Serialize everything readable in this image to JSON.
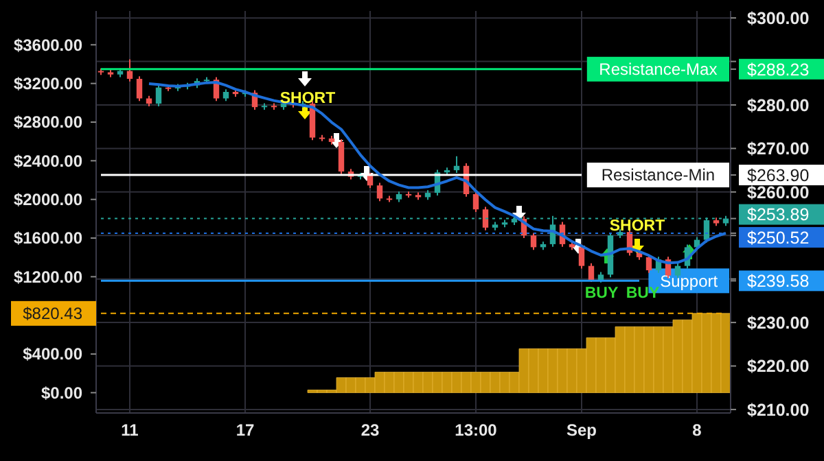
{
  "chart_data": {
    "type": "candlestick",
    "categories": [
      null,
      null,
      null,
      "11",
      null,
      null,
      null,
      null,
      null,
      null,
      null,
      null,
      null,
      null,
      null,
      "17",
      null,
      null,
      null,
      null,
      null,
      null,
      null,
      null,
      null,
      null,
      null,
      null,
      "23",
      null,
      null,
      null,
      null,
      null,
      null,
      null,
      null,
      null,
      null,
      "13:00",
      null,
      null,
      null,
      null,
      null,
      null,
      null,
      null,
      null,
      null,
      "Sep",
      null,
      null,
      null,
      null,
      null,
      null,
      null,
      null,
      null,
      null,
      null,
      "8",
      null,
      null,
      null
    ],
    "ohlc": [
      [
        287.8,
        288.4,
        286.9,
        287.5
      ],
      [
        287.5,
        288.1,
        286.4,
        287
      ],
      [
        287,
        288.4,
        286.4,
        287.8
      ],
      [
        287.8,
        290.5,
        285.4,
        286
      ],
      [
        286,
        286.6,
        280.9,
        281.5
      ],
      [
        281.5,
        282.1,
        279.7,
        280.3
      ],
      [
        280.3,
        284.6,
        279.7,
        284
      ],
      [
        284,
        284.6,
        283.2,
        283.8
      ],
      [
        283.8,
        284.8,
        283.2,
        284.2
      ],
      [
        284.2,
        285.1,
        283.6,
        284.5
      ],
      [
        284.5,
        286.1,
        283.9,
        285.5
      ],
      [
        285.5,
        286.4,
        284.9,
        285.8
      ],
      [
        285.8,
        286.4,
        280.9,
        281.5
      ],
      [
        281.5,
        283.6,
        280.9,
        283
      ],
      [
        283,
        283.6,
        281.9,
        282.5
      ],
      [
        282.5,
        283.4,
        281.9,
        282.8
      ],
      [
        282.8,
        283.4,
        278.9,
        279.5
      ],
      [
        279.5,
        280.4,
        278.9,
        279.8
      ],
      [
        279.8,
        280.4,
        278.9,
        279.5
      ],
      [
        279.5,
        280.9,
        278.9,
        280.3
      ],
      [
        280.3,
        280.9,
        279.4,
        280
      ],
      [
        280,
        280.9,
        279.4,
        280.3
      ],
      [
        280.3,
        280.9,
        271.9,
        272.5
      ],
      [
        272.5,
        273.1,
        271.7,
        272.3
      ],
      [
        272.3,
        272.9,
        270.9,
        271.5
      ],
      [
        271.5,
        272.1,
        264.1,
        264.7
      ],
      [
        264.7,
        265.3,
        262.9,
        263.5
      ],
      [
        263.5,
        264.4,
        262.9,
        263.8
      ],
      [
        263.8,
        264.4,
        260.9,
        261.5
      ],
      [
        261.5,
        262.1,
        257.9,
        258.5
      ],
      [
        258.5,
        259.1,
        257.7,
        258.3
      ],
      [
        258.3,
        260.1,
        257.7,
        259.5
      ],
      [
        259.5,
        260.1,
        258.7,
        259.3
      ],
      [
        259.3,
        259.9,
        258.2,
        258.8
      ],
      [
        258.8,
        260.4,
        258.2,
        259.8
      ],
      [
        259.8,
        265.1,
        259.2,
        264.5
      ],
      [
        264.5,
        265.6,
        263.9,
        265
      ],
      [
        265,
        268.2,
        264.4,
        266
      ],
      [
        266,
        266.6,
        258.9,
        259.5
      ],
      [
        259.5,
        260.1,
        255.4,
        256
      ],
      [
        256,
        256.6,
        251.2,
        251.8
      ],
      [
        251.8,
        253.1,
        251.2,
        252.5
      ],
      [
        252.5,
        253.6,
        251.9,
        253
      ],
      [
        253,
        254.4,
        252.4,
        253.8
      ],
      [
        253.8,
        254.4,
        249.4,
        250
      ],
      [
        250,
        250.6,
        246.7,
        247.3
      ],
      [
        247.3,
        248.6,
        246.7,
        248
      ],
      [
        248,
        254.5,
        247.4,
        252.5
      ],
      [
        252.5,
        253.1,
        247.4,
        248
      ],
      [
        248,
        248.6,
        246.7,
        247.3
      ],
      [
        247.3,
        247.9,
        242.4,
        243
      ],
      [
        243,
        243.6,
        239.3,
        239.8
      ],
      [
        239.8,
        241.6,
        239.2,
        241
      ],
      [
        241,
        250.6,
        240.4,
        250
      ],
      [
        250,
        251.4,
        249.4,
        250.8
      ],
      [
        250.8,
        251.4,
        245.4,
        246
      ],
      [
        246,
        246.6,
        244.4,
        245
      ],
      [
        245,
        245.6,
        241.4,
        242
      ],
      [
        242,
        245.1,
        241.4,
        244.5
      ],
      [
        244.5,
        245.1,
        240.2,
        240.8
      ],
      [
        240.8,
        243.6,
        240.2,
        243
      ],
      [
        243,
        247.9,
        242.4,
        247.3
      ],
      [
        247.3,
        249.6,
        246.7,
        249
      ],
      [
        249,
        254.1,
        248.4,
        253.5
      ],
      [
        253.5,
        254.1,
        252.2,
        252.8
      ],
      [
        252.8,
        254.5,
        252.2,
        253.89
      ]
    ],
    "colors": [
      "#ef5350",
      "#ef5350",
      "#26a69a",
      "#ef5350",
      "#ef5350",
      "#ef5350",
      "#26a69a",
      "#ef5350",
      "#26a69a",
      "#26a69a",
      "#26a69a",
      "#26a69a",
      "#ef5350",
      "#26a69a",
      "#ef5350",
      "#26a69a",
      "#ef5350",
      "#26a69a",
      "#ef5350",
      "#26a69a",
      "#ef5350",
      "#26a69a",
      "#ef5350",
      "#ef5350",
      "#ef5350",
      "#ef5350",
      "#ef5350",
      "#26a69a",
      "#ef5350",
      "#ef5350",
      "#ef5350",
      "#26a69a",
      "#ef5350",
      "#ef5350",
      "#26a69a",
      "#26a69a",
      "#26a69a",
      "#26a69a",
      "#ef5350",
      "#ef5350",
      "#ef5350",
      "#26a69a",
      "#26a69a",
      "#26a69a",
      "#ef5350",
      "#ef5350",
      "#26a69a",
      "#26a69a",
      "#ef5350",
      "#ef5350",
      "#ef5350",
      "#ef5350",
      "#26a69a",
      "#26a69a",
      "#26a69a",
      "#ef5350",
      "#ef5350",
      "#ef5350",
      "#26a69a",
      "#ef5350",
      "#26a69a",
      "#26a69a",
      "#26a69a",
      "#26a69a",
      "#ef5350",
      "#26a69a"
    ],
    "series": [
      {
        "type": "bar",
        "axis": "y2",
        "color": "#c9960c",
        "values": [
          0,
          0,
          0,
          0,
          0,
          0,
          0,
          0,
          0,
          0,
          0,
          0,
          0,
          0,
          0,
          0,
          0,
          0,
          0,
          0,
          0,
          0,
          28,
          28,
          28,
          156,
          156,
          156,
          156,
          213,
          213,
          213,
          213,
          213,
          213,
          213,
          213,
          213,
          213,
          213,
          213,
          213,
          213,
          213,
          455,
          455,
          455,
          455,
          455,
          455,
          455,
          569,
          569,
          569,
          683,
          683,
          683,
          683,
          683,
          683,
          754,
          754,
          820.43,
          820.43,
          820.43,
          820.43
        ]
      },
      {
        "type": "line",
        "color": "#1e6fd9",
        "values": [
          null,
          null,
          null,
          null,
          null,
          284.9,
          284.7,
          284.4,
          284.3,
          284.5,
          284.8,
          285.1,
          285.2,
          284.5,
          283.6,
          283,
          282.2,
          281.6,
          281,
          280.6,
          280.3,
          279.9,
          279.5,
          278,
          276,
          274.4,
          271.5,
          268.5,
          266,
          264,
          262.5,
          261.6,
          261,
          261,
          261.2,
          261.8,
          262.5,
          263.3,
          262.5,
          260.2,
          258.2,
          256.4,
          255.5,
          254.5,
          253,
          251.5,
          251.1,
          251,
          250,
          248.6,
          247.6,
          246.4,
          245.5,
          245.8,
          246.8,
          247,
          246.3,
          245.4,
          244.2,
          243.7,
          243.8,
          244.6,
          247,
          248.8,
          249.8,
          250.52
        ]
      }
    ],
    "ylim": [
      209.2,
      301.6
    ],
    "yticks": [
      {
        "value": 210,
        "label": "$210.00"
      },
      {
        "value": 220,
        "label": "$220.00"
      },
      {
        "value": 230,
        "label": "$230.00"
      },
      {
        "value": 240,
        "label": null
      },
      {
        "value": 250,
        "label": null
      },
      {
        "value": 260,
        "label": "$260.00"
      },
      {
        "value": 270,
        "label": "$270.00"
      },
      {
        "value": 280,
        "label": "$280.00"
      },
      {
        "value": 290,
        "label": null
      },
      {
        "value": 300,
        "label": "$300.00"
      },
      {
        "value": 288.23,
        "label": "$288.23"
      },
      {
        "value": 263.9,
        "label": "$263.90"
      },
      {
        "value": 253.89,
        "label": "$253.89"
      },
      {
        "value": 250.52,
        "label": "$250.52"
      },
      {
        "value": 239.58,
        "label": "$239.58"
      }
    ],
    "y2lim": [
      -210,
      3950
    ],
    "y2ticks": [
      {
        "value": 0,
        "label": "$0.00"
      },
      {
        "value": 400,
        "label": "$400.00"
      },
      {
        "value": 800,
        "label": null
      },
      {
        "value": 1200,
        "label": "$1200.00"
      },
      {
        "value": 1600,
        "label": "$1600.00"
      },
      {
        "value": 2000,
        "label": "$2000.00"
      },
      {
        "value": 2400,
        "label": "$2400.00"
      },
      {
        "value": 2800,
        "label": "$2800.00"
      },
      {
        "value": 3200,
        "label": "$3200.00"
      },
      {
        "value": 3600,
        "label": "$3600.00"
      },
      {
        "value": 820.43,
        "label": "$820.43"
      }
    ],
    "ref_lines": [
      {
        "axis": "y",
        "value": 288.23,
        "label": "Resistance-Max",
        "color": "#00e676"
      },
      {
        "axis": "y",
        "value": 263.9,
        "label": "Resistance-Min",
        "color": "#ffffff"
      },
      {
        "axis": "y",
        "value": 253.89,
        "color": "#26a69a",
        "line_style": "dotted"
      },
      {
        "axis": "y",
        "value": 250.52,
        "color": "#1e6fe0",
        "line_style": "dotted"
      },
      {
        "axis": "y",
        "value": 239.58,
        "label": "Support",
        "color": "#2196f3"
      },
      {
        "axis": "y2",
        "value": 820.43,
        "color": "#f0a800",
        "line_style": "dashed"
      }
    ],
    "annotations": [
      "SHORT",
      "SHORT",
      "BUY",
      "BUY"
    ],
    "grid": true
  }
}
